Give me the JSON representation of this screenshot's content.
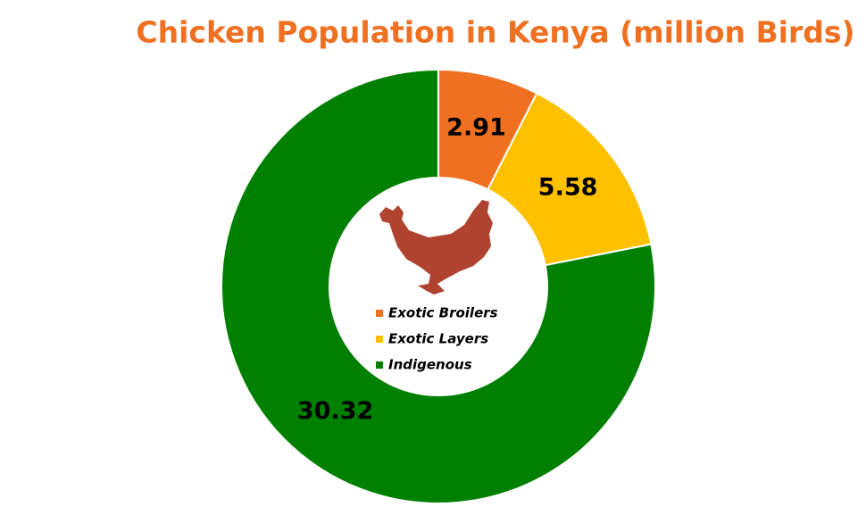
{
  "chart_data": {
    "type": "donut",
    "title": "Chicken Population in Kenya (million Birds)",
    "categories": [
      "Exotic Broilers",
      "Exotic Layers",
      "Indigenous"
    ],
    "values": [
      2.91,
      5.58,
      30.32
    ],
    "colors": [
      "#ef7021",
      "#ffc000",
      "#008000"
    ]
  }
}
